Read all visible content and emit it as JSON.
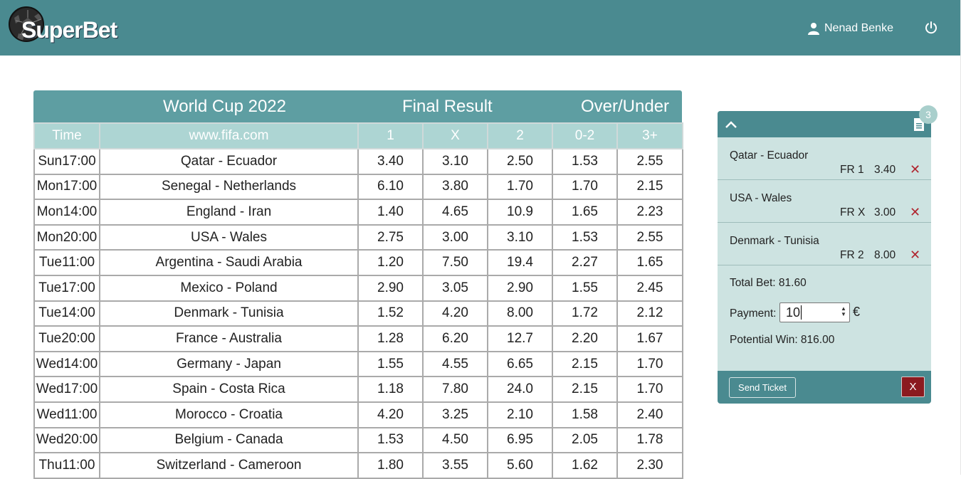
{
  "header": {
    "logo_text": "SuperBet",
    "user_name": "Nenad Benke",
    "icons": {
      "user": "user-icon",
      "power": "power-icon",
      "logo": "soccer-ball-icon"
    }
  },
  "board": {
    "title": "World Cup 2022",
    "group_final": "Final Result",
    "group_ou": "Over/Under",
    "columns": [
      "Time",
      "www.fifa.com",
      "1",
      "X",
      "2",
      "0-2",
      "3+"
    ],
    "rows": [
      [
        "Sun17:00",
        "Qatar - Ecuador",
        "3.40",
        "3.10",
        "2.50",
        "1.53",
        "2.55"
      ],
      [
        "Mon17:00",
        "Senegal - Netherlands",
        "6.10",
        "3.80",
        "1.70",
        "1.70",
        "2.15"
      ],
      [
        "Mon14:00",
        "England - Iran",
        "1.40",
        "4.65",
        "10.9",
        "1.65",
        "2.23"
      ],
      [
        "Mon20:00",
        "USA - Wales",
        "2.75",
        "3.00",
        "3.10",
        "1.53",
        "2.55"
      ],
      [
        "Tue11:00",
        "Argentina - Saudi Arabia",
        "1.20",
        "7.50",
        "19.4",
        "2.27",
        "1.65"
      ],
      [
        "Tue17:00",
        "Mexico - Poland",
        "2.90",
        "3.05",
        "2.90",
        "1.55",
        "2.45"
      ],
      [
        "Tue14:00",
        "Denmark - Tunisia",
        "1.52",
        "4.20",
        "8.00",
        "1.72",
        "2.12"
      ],
      [
        "Tue20:00",
        "France - Australia",
        "1.28",
        "6.20",
        "12.7",
        "2.20",
        "1.67"
      ],
      [
        "Wed14:00",
        "Germany - Japan",
        "1.55",
        "4.55",
        "6.65",
        "2.15",
        "1.70"
      ],
      [
        "Wed17:00",
        "Spain - Costa Rica",
        "1.18",
        "7.80",
        "24.0",
        "2.15",
        "1.70"
      ],
      [
        "Wed11:00",
        "Morocco - Croatia",
        "4.20",
        "3.25",
        "2.10",
        "1.58",
        "2.40"
      ],
      [
        "Wed20:00",
        "Belgium - Canada",
        "1.53",
        "4.50",
        "6.95",
        "2.05",
        "1.78"
      ],
      [
        "Thu11:00",
        "Switzerland - Cameroon",
        "1.80",
        "3.55",
        "5.60",
        "1.62",
        "2.30"
      ]
    ]
  },
  "ticket": {
    "count": "3",
    "bets": [
      {
        "match": "Qatar - Ecuador",
        "type": "FR 1",
        "odd": "3.40",
        "remove": "✕"
      },
      {
        "match": "USA - Wales",
        "type": "FR X",
        "odd": "3.00",
        "remove": "✕"
      },
      {
        "match": "Denmark - Tunisia",
        "type": "FR 2",
        "odd": "8.00",
        "remove": "✕"
      }
    ],
    "total_bet": "Total Bet: 81.60",
    "payment_label": "Payment:",
    "payment_value": "10",
    "currency": "€",
    "potential_win": "Potential Win: 816.00",
    "send_label": "Send Ticket",
    "clear_label": "X"
  }
}
